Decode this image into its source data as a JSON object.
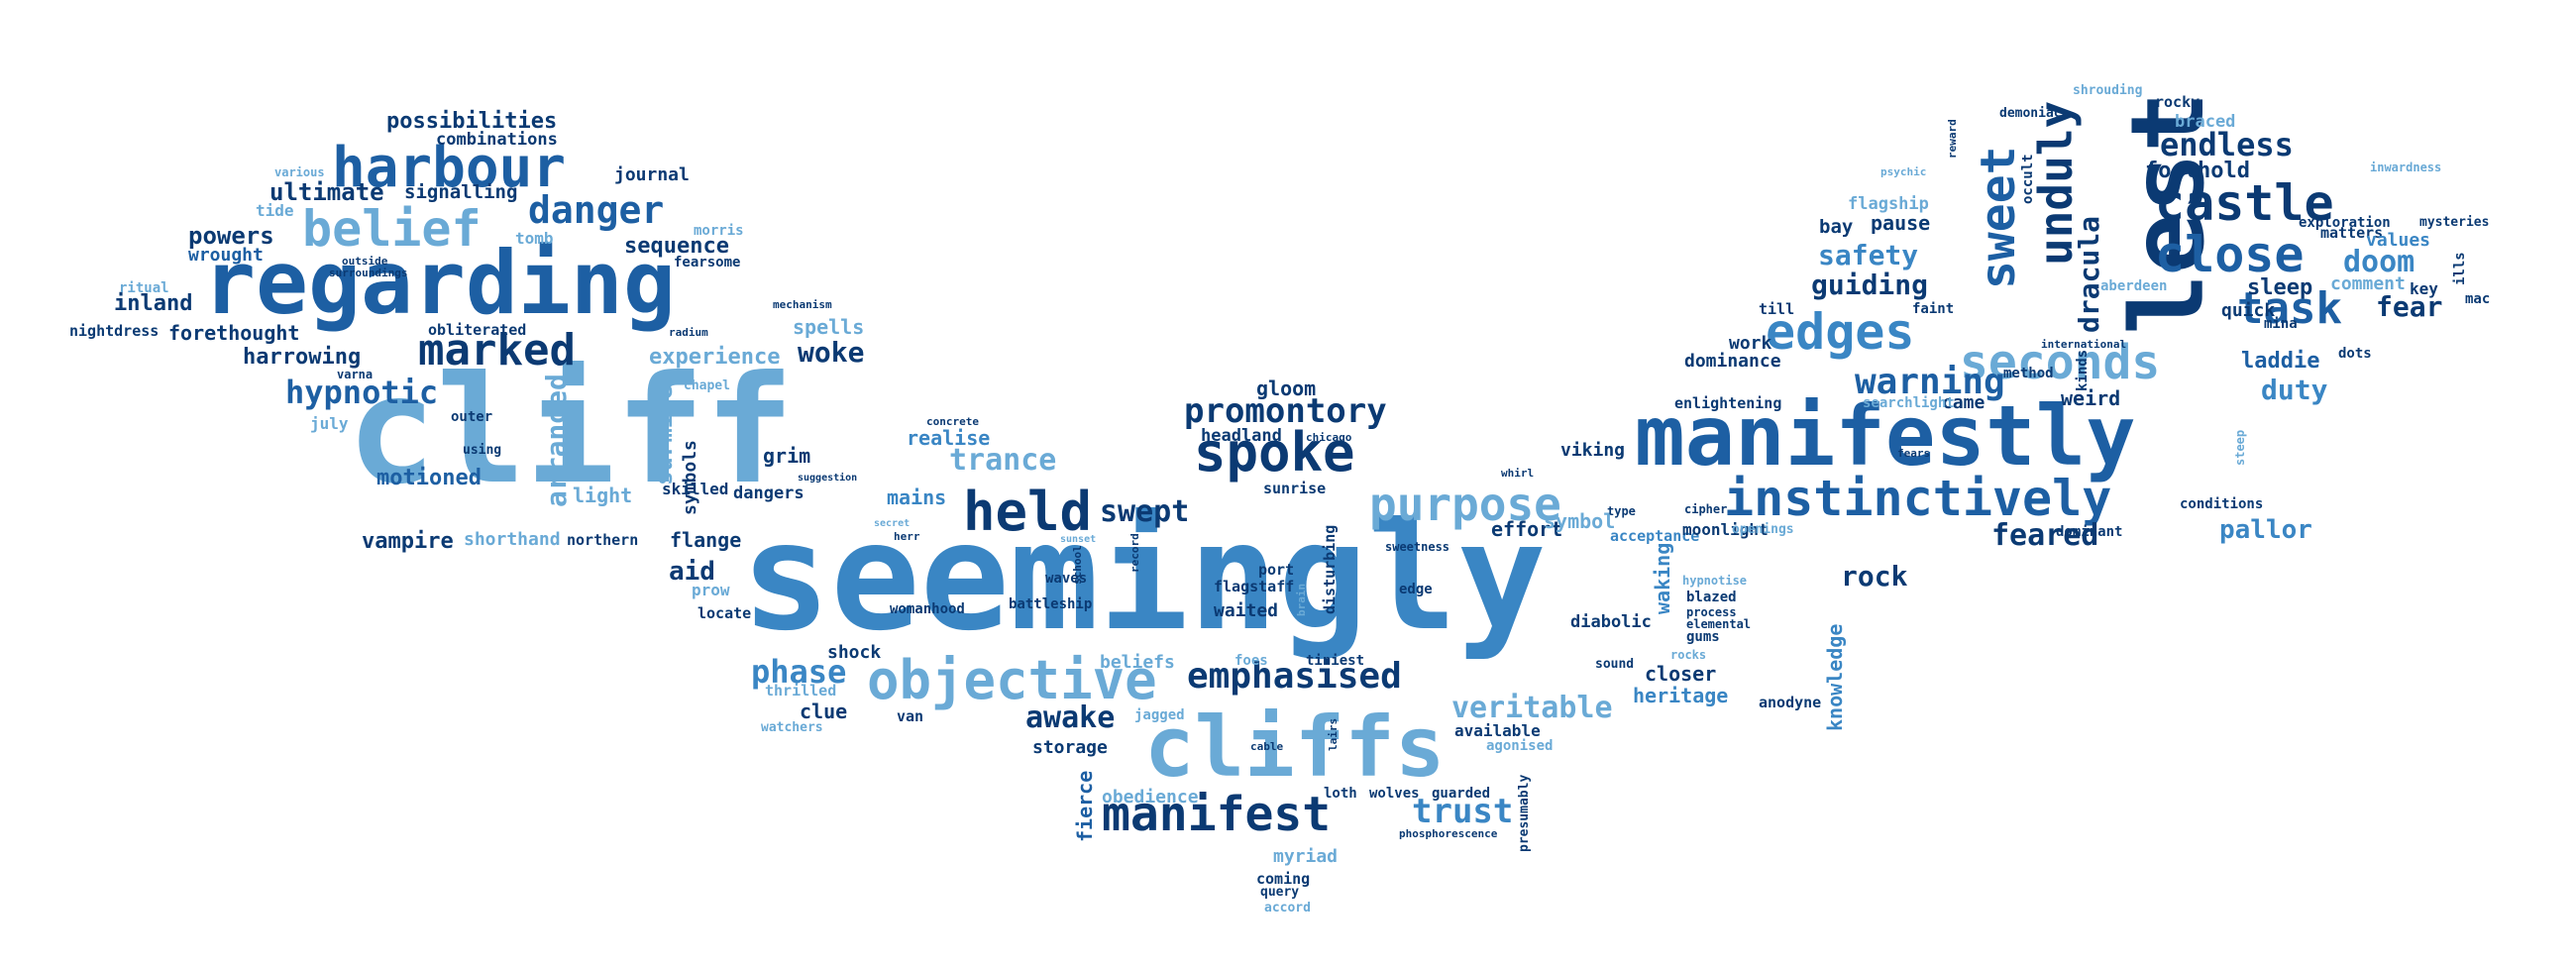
{
  "words": [
    "seemingly",
    "cliff",
    "manifestly",
    "lest",
    "regarding",
    "cliffs",
    "instinctively",
    "manifest",
    "spoke",
    "held",
    "objective",
    "purpose",
    "harbour",
    "belief",
    "marked",
    "edges",
    "seconds",
    "castle",
    "close",
    "sweet",
    "unduly",
    "emphasised",
    "promontory",
    "danger",
    "warning",
    "task",
    "endless",
    "woke",
    "hypnotic",
    "safety",
    "guiding",
    "trust",
    "veritable",
    "phase",
    "awake",
    "trance",
    "feared",
    "rock",
    "doom",
    "fear",
    "duty",
    "pallor",
    "laddie",
    "dracula",
    "foothold",
    "braced",
    "pause",
    "bay",
    "possibilities",
    "combinations",
    "journal",
    "ultimate",
    "signalling",
    "sequence",
    "powers",
    "wrought",
    "tide",
    "inland",
    "forethought",
    "nightdress",
    "harrowing",
    "obliterated",
    "experience",
    "spells",
    "arranged",
    "surmise",
    "symbols",
    "motioned",
    "vampire",
    "shorthand",
    "northern",
    "light",
    "skilled",
    "dangers",
    "grim",
    "realise",
    "mains",
    "flange",
    "aid",
    "locate",
    "prow",
    "swept",
    "gloom",
    "headland",
    "sunrise",
    "waited",
    "battleship",
    "womanhood",
    "shock",
    "clue",
    "van",
    "storage",
    "fierce",
    "obedience",
    "myriad",
    "coming",
    "query",
    "accord",
    "wolves",
    "guarded",
    "loth",
    "phosphorescence",
    "presumably",
    "agonised",
    "available",
    "heritage",
    "closer",
    "anodyne",
    "knowledge",
    "effort",
    "symbol",
    "acceptance",
    "viking",
    "moonlight",
    "waking",
    "diabolic",
    "blazed",
    "sound",
    "openings",
    "dominant",
    "conditions",
    "weird",
    "kinds",
    "method",
    "came",
    "dominance",
    "work",
    "faint",
    "till",
    "enlightening",
    "searchlight",
    "sleep",
    "comment",
    "quick",
    "mina",
    "key",
    "matters",
    "exploration",
    "values",
    "mysteries",
    "inwardness",
    "international",
    "aberdeen",
    "occult",
    "dots",
    "mac",
    "ills",
    "rocky",
    "shrouding",
    "demoniac",
    "psychic",
    "reward",
    "flagship",
    "various",
    "outside",
    "ritual",
    "surroundings",
    "varna",
    "july",
    "outer",
    "using",
    "chapel",
    "radium",
    "mechanism",
    "fearsome",
    "tomb",
    "morris",
    "concrete",
    "suggestion",
    "secret",
    "herr",
    "sunset",
    "record",
    "school",
    "waves",
    "brain",
    "port",
    "flagstaff",
    "edge",
    "sweetness",
    "chicago",
    "disturbing",
    "beliefs",
    "foes",
    "tiniest",
    "jagged",
    "cable",
    "lairs",
    "thrilled",
    "watchers",
    "whirl",
    "type",
    "cipher",
    "hypnotise",
    "process",
    "elemental",
    "gums",
    "rocks",
    "fears",
    "steep"
  ],
  "colors": [
    "#0b3a73",
    "#1d5fa3",
    "#3a86c4",
    "#6aaad6",
    "#9fc6e5"
  ]
}
